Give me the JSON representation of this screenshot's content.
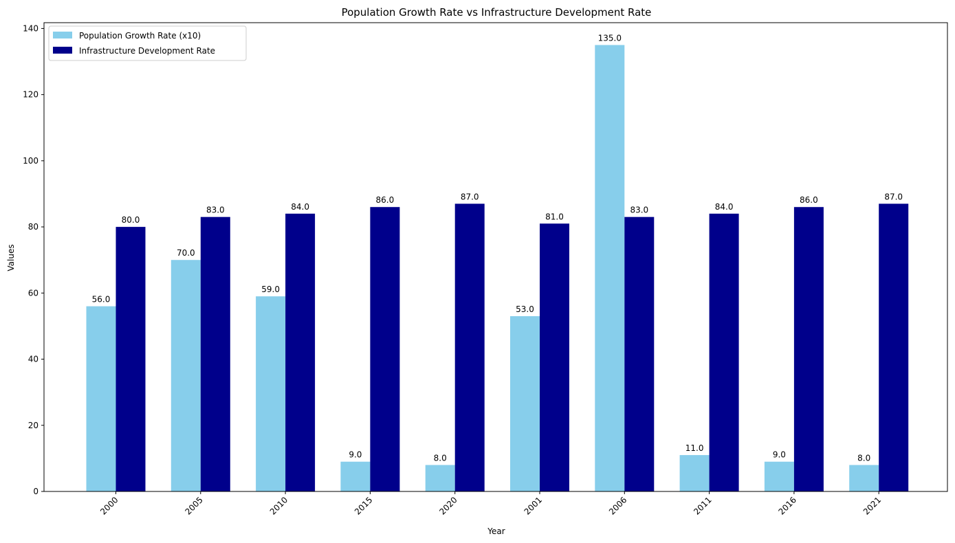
{
  "chart_data": {
    "type": "bar",
    "title": "Population Growth Rate vs Infrastructure Development Rate",
    "xlabel": "Year",
    "ylabel": "Values",
    "categories": [
      "2000",
      "2005",
      "2010",
      "2015",
      "2020",
      "2001",
      "2006",
      "2011",
      "2016",
      "2021"
    ],
    "series": [
      {
        "name": "Population Growth Rate (x10)",
        "color": "#87ceeb",
        "values": [
          56.0,
          70.0,
          59.0,
          9.0,
          8.0,
          53.0,
          135.0,
          11.0,
          9.0,
          8.0
        ],
        "labels": [
          "56.0",
          "70.0",
          "59.0",
          "9.0",
          "8.0",
          "53.0",
          "135.0",
          "11.0",
          "9.0",
          "8.0"
        ]
      },
      {
        "name": "Infrastructure Development Rate",
        "color": "#00008b",
        "values": [
          80.0,
          83.0,
          84.0,
          86.0,
          87.0,
          81.0,
          83.0,
          84.0,
          86.0,
          87.0
        ],
        "labels": [
          "80.0",
          "83.0",
          "84.0",
          "86.0",
          "87.0",
          "81.0",
          "83.0",
          "84.0",
          "86.0",
          "87.0"
        ]
      }
    ],
    "ylim": [
      0,
      141.75
    ],
    "yticks": [
      0,
      20,
      40,
      60,
      80,
      100,
      120,
      140
    ],
    "ytick_labels": [
      "0",
      "20",
      "40",
      "60",
      "80",
      "100",
      "120",
      "140"
    ],
    "legend": "top-left",
    "grid": false
  }
}
